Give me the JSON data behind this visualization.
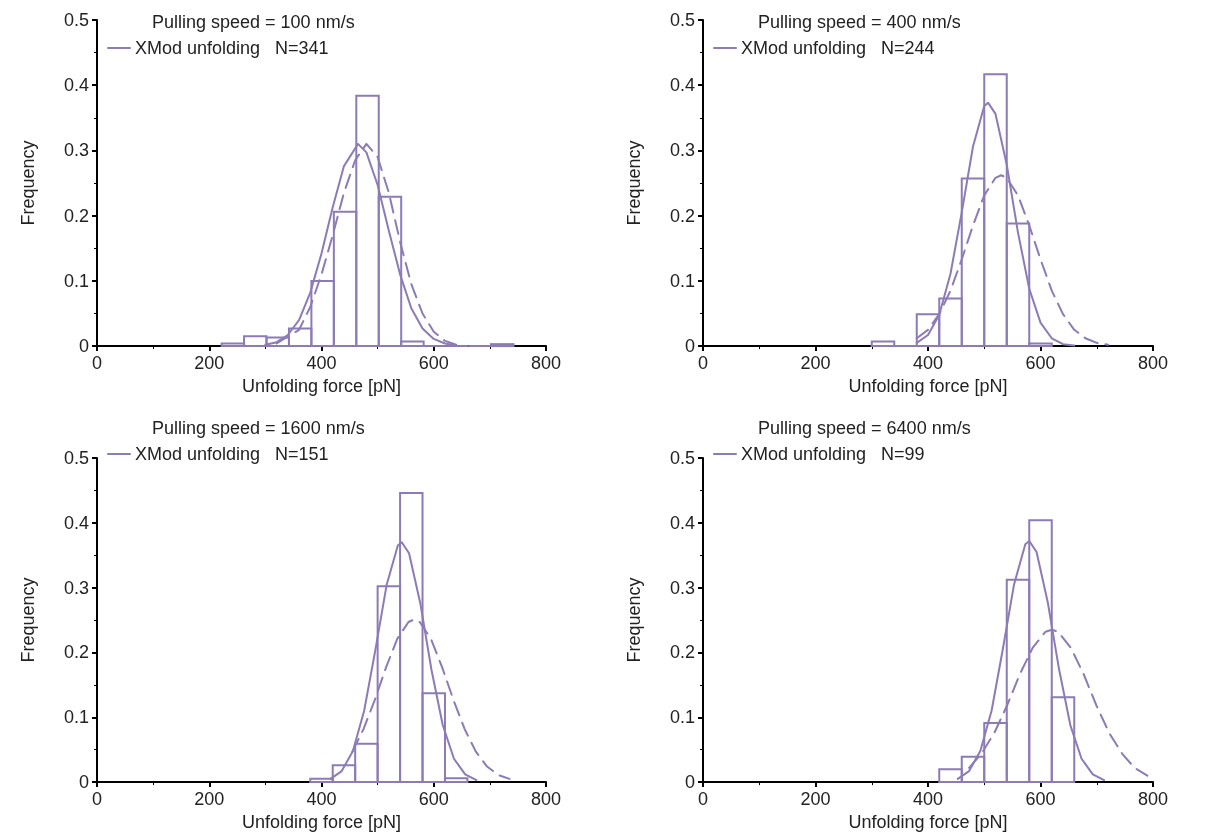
{
  "chart_data": [
    {
      "type": "histogram",
      "title": "Pulling speed = 100 nm/s",
      "xlabel": "Unfolding force [pN]",
      "ylabel": "Frequency",
      "color": "#8c7bb5",
      "bins": [
        222,
        262,
        302,
        342,
        382,
        422,
        462,
        502,
        542,
        582,
        622,
        662,
        702,
        742
      ],
      "values": [
        0.004,
        0.015,
        0.013,
        0.027,
        0.1,
        0.206,
        0.384,
        0.229,
        0.007,
        0,
        0,
        0,
        0.003
      ],
      "series": [
        {
          "type": "line",
          "name": "XMod unfolding   N=341",
          "color": "#8c7bb5",
          "x": [
            300,
            320,
            340,
            360,
            380,
            400,
            420,
            440,
            465,
            480,
            500,
            520,
            540,
            560,
            580,
            600,
            620,
            640
          ],
          "values": [
            0.002,
            0.006,
            0.017,
            0.04,
            0.082,
            0.142,
            0.213,
            0.276,
            0.31,
            0.297,
            0.247,
            0.177,
            0.11,
            0.058,
            0.027,
            0.011,
            0.004,
            0.001
          ]
        },
        {
          "type": "line",
          "line_style": "dashed",
          "color": "#8c7bb5",
          "x": [
            320,
            360,
            380,
            400,
            420,
            440,
            460,
            480,
            500,
            520,
            540,
            560,
            580,
            600,
            620,
            640
          ],
          "values": [
            0.004,
            0.025,
            0.06,
            0.11,
            0.17,
            0.235,
            0.285,
            0.31,
            0.29,
            0.235,
            0.16,
            0.095,
            0.05,
            0.022,
            0.008,
            0.002
          ]
        }
      ],
      "xlim": [
        0,
        800
      ],
      "xticks": [
        0,
        200,
        400,
        600,
        800
      ],
      "ylim": [
        0,
        0.5
      ],
      "yticks": [
        0,
        0.1,
        0.2,
        0.3,
        0.4,
        0.5
      ],
      "legend": "top left",
      "marker": "none",
      "grid": false
    },
    {
      "type": "histogram",
      "title": "Pulling speed = 400 nm/s",
      "xlabel": "Unfolding force [pN]",
      "ylabel": "Frequency",
      "color": "#8c7bb5",
      "bins": [
        300,
        340,
        380,
        420,
        460,
        500,
        540,
        580,
        620
      ],
      "values": [
        0.007,
        0,
        0.049,
        0.073,
        0.257,
        0.417,
        0.188,
        0.004
      ],
      "series": [
        {
          "type": "line",
          "name": "XMod unfolding   N=244",
          "color": "#8c7bb5",
          "x": [
            380,
            400,
            420,
            440,
            460,
            480,
            500,
            507,
            520,
            540,
            560,
            580,
            600,
            620,
            640,
            660
          ],
          "values": [
            0.005,
            0.017,
            0.048,
            0.111,
            0.205,
            0.306,
            0.368,
            0.373,
            0.356,
            0.278,
            0.174,
            0.088,
            0.036,
            0.012,
            0.003,
            0.001
          ]
        },
        {
          "type": "line",
          "line_style": "dashed",
          "color": "#8c7bb5",
          "x": [
            380,
            400,
            420,
            440,
            460,
            480,
            500,
            520,
            530,
            540,
            560,
            580,
            600,
            620,
            640,
            660,
            680,
            700,
            720
          ],
          "values": [
            0.012,
            0.025,
            0.049,
            0.085,
            0.133,
            0.185,
            0.231,
            0.258,
            0.262,
            0.258,
            0.231,
            0.185,
            0.133,
            0.085,
            0.049,
            0.025,
            0.012,
            0.005,
            0.002
          ]
        }
      ],
      "xlim": [
        0,
        800
      ],
      "xticks": [
        0,
        200,
        400,
        600,
        800
      ],
      "ylim": [
        0,
        0.5
      ],
      "yticks": [
        0,
        0.1,
        0.2,
        0.3,
        0.4,
        0.5
      ],
      "legend": "top left",
      "marker": "none",
      "grid": false
    },
    {
      "type": "histogram",
      "title": "Pulling speed = 1600 nm/s",
      "xlabel": "Unfolding force [pN]",
      "ylabel": "Frequency",
      "color": "#8c7bb5",
      "bins": [
        380,
        420,
        460,
        500,
        540,
        580,
        620,
        660
      ],
      "values": [
        0.005,
        0.026,
        0.059,
        0.302,
        0.446,
        0.137,
        0.006
      ],
      "series": [
        {
          "type": "line",
          "name": "XMod unfolding   N=151",
          "color": "#8c7bb5",
          "x": [
            416,
            436,
            456,
            476,
            496,
            516,
            536,
            543,
            556,
            576,
            596,
            616,
            636,
            656,
            676
          ],
          "values": [
            0.005,
            0.017,
            0.048,
            0.11,
            0.204,
            0.304,
            0.365,
            0.37,
            0.353,
            0.276,
            0.173,
            0.088,
            0.036,
            0.012,
            0.003
          ]
        },
        {
          "type": "line",
          "line_style": "dashed",
          "color": "#8c7bb5",
          "x": [
            455,
            475,
            495,
            515,
            535,
            555,
            565,
            575,
            595,
            615,
            635,
            655,
            675,
            695,
            715,
            735
          ],
          "values": [
            0.047,
            0.082,
            0.127,
            0.177,
            0.221,
            0.247,
            0.251,
            0.247,
            0.221,
            0.177,
            0.127,
            0.082,
            0.047,
            0.024,
            0.011,
            0.005
          ]
        }
      ],
      "xlim": [
        0,
        800
      ],
      "xticks": [
        0,
        200,
        400,
        600,
        800
      ],
      "ylim": [
        0,
        0.5
      ],
      "yticks": [
        0,
        0.1,
        0.2,
        0.3,
        0.4,
        0.5
      ],
      "legend": "top left",
      "marker": "none",
      "grid": false
    },
    {
      "type": "histogram",
      "title": "Pulling speed = 6400 nm/s",
      "xlabel": "Unfolding force [pN]",
      "ylabel": "Frequency",
      "color": "#8c7bb5",
      "bins": [
        420,
        460,
        500,
        540,
        580,
        620,
        660
      ],
      "values": [
        0.02,
        0.039,
        0.091,
        0.312,
        0.404,
        0.131
      ],
      "series": [
        {
          "type": "line",
          "name": "XMod unfolding   N=99",
          "color": "#8c7bb5",
          "x": [
            453,
            473,
            493,
            513,
            533,
            553,
            573,
            580,
            593,
            613,
            633,
            653,
            673,
            693,
            713
          ],
          "values": [
            0.005,
            0.017,
            0.048,
            0.11,
            0.205,
            0.305,
            0.367,
            0.372,
            0.355,
            0.277,
            0.174,
            0.088,
            0.036,
            0.012,
            0.003
          ]
        },
        {
          "type": "line",
          "line_style": "dashed",
          "color": "#8c7bb5",
          "x": [
            473,
            495,
            518,
            541,
            563,
            586,
            609,
            620,
            631,
            654,
            677,
            699,
            722,
            745,
            767,
            790
          ],
          "values": [
            0.022,
            0.044,
            0.076,
            0.119,
            0.166,
            0.207,
            0.232,
            0.235,
            0.232,
            0.207,
            0.166,
            0.119,
            0.076,
            0.044,
            0.022,
            0.01
          ]
        }
      ],
      "xlim": [
        0,
        800
      ],
      "xticks": [
        0,
        200,
        400,
        600,
        800
      ],
      "ylim": [
        0,
        0.5
      ],
      "yticks": [
        0,
        0.1,
        0.2,
        0.3,
        0.4,
        0.5
      ],
      "legend": "top left",
      "marker": "none",
      "grid": false
    }
  ]
}
